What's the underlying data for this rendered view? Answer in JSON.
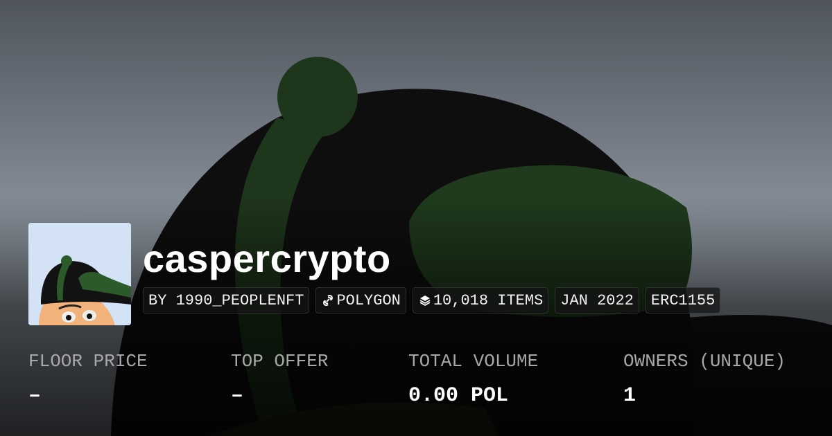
{
  "collection": {
    "name": "caspercrypto",
    "chips": [
      {
        "label": "BY 1990_PEOPLENFT",
        "icon": null
      },
      {
        "label": "POLYGON",
        "icon": "chain-link-icon"
      },
      {
        "label": "10,018 ITEMS",
        "icon": "layers-icon"
      },
      {
        "label": "JAN 2022",
        "icon": null
      },
      {
        "label": "ERC1155",
        "icon": null
      }
    ]
  },
  "stats": [
    {
      "label": "FLOOR PRICE",
      "value": "–"
    },
    {
      "label": "TOP OFFER",
      "value": "–"
    },
    {
      "label": "TOTAL VOLUME",
      "value": "0.00 POL"
    },
    {
      "label": "OWNERS (UNIQUE)",
      "value": "1"
    }
  ],
  "colors": {
    "cap_black": "#0f0f10",
    "cap_green": "#1f3a1c",
    "sky": "#8a929c"
  }
}
